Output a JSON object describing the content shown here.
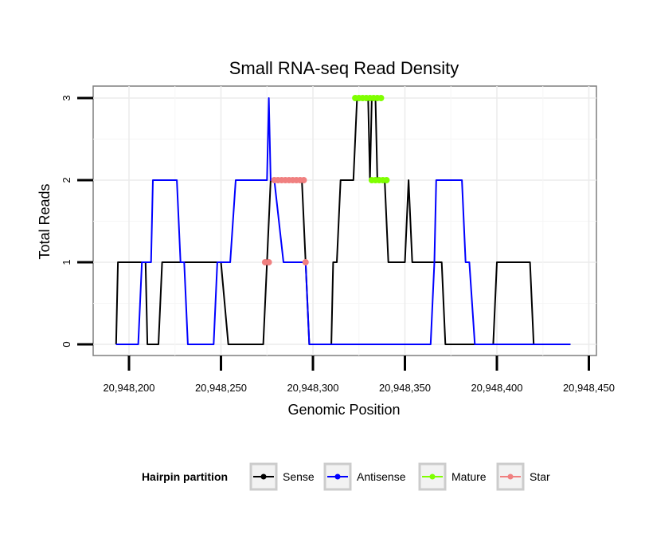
{
  "chart_data": {
    "type": "line",
    "title": "Small RNA-seq Read Density",
    "xlabel": "Genomic Position",
    "ylabel": "Total Reads",
    "xlim": [
      20948190,
      20948450
    ],
    "ylim": [
      0,
      3
    ],
    "x_ticks": [
      20948200,
      20948250,
      20948300,
      20948350,
      20948400,
      20948450
    ],
    "x_tick_labels": [
      "20,948,200",
      "20,948,250",
      "20,948,300",
      "20,948,350",
      "20,948,400",
      "20,948,450"
    ],
    "y_ticks": [
      0,
      1,
      2,
      3
    ],
    "y_tick_labels": [
      "0",
      "1",
      "2",
      "3"
    ],
    "grid": true,
    "legend": {
      "title": "Hairpin partition",
      "position": "bottom",
      "entries": [
        "Sense",
        "Antisense",
        "Mature",
        "Star"
      ]
    },
    "series": [
      {
        "name": "Sense",
        "color": "#000000",
        "style": "line",
        "x": [
          20948193,
          20948194,
          20948207,
          20948209,
          20948210,
          20948216,
          20948218,
          20948220,
          20948228,
          20948250,
          20948254,
          20948255,
          20948273,
          20948275,
          20948277,
          20948279,
          20948294,
          20948296,
          20948298,
          20948310,
          20948311,
          20948313,
          20948315,
          20948322,
          20948324,
          20948325,
          20948328,
          20948330,
          20948331,
          20948332,
          20948334,
          20948335,
          20948339,
          20948341,
          20948343,
          20948350,
          20948352,
          20948354,
          20948356,
          20948364,
          20948366,
          20948370,
          20948372,
          20948398,
          20948400,
          20948418,
          20948420,
          20948440
        ],
        "y": [
          0,
          1,
          1,
          1,
          0,
          0,
          1,
          1,
          1,
          1,
          0,
          0,
          0,
          1,
          2,
          2,
          2,
          1,
          0,
          0,
          1,
          1,
          2,
          2,
          3,
          3,
          3,
          3,
          2,
          3,
          3,
          2,
          2,
          1,
          1,
          1,
          2,
          1,
          1,
          1,
          1,
          1,
          0,
          0,
          1,
          1,
          0,
          0
        ]
      },
      {
        "name": "Antisense",
        "color": "#0000ff",
        "style": "line",
        "x": [
          20948193,
          20948205,
          20948207,
          20948212,
          20948213,
          20948226,
          20948228,
          20948230,
          20948232,
          20948233,
          20948236,
          20948244,
          20948246,
          20948248,
          20948255,
          20948258,
          20948259,
          20948260,
          20948272,
          20948275,
          20948276,
          20948277,
          20948279,
          20948284,
          20948296,
          20948298,
          20948316,
          20948364,
          20948366,
          20948367,
          20948381,
          20948383,
          20948385,
          20948388,
          20948390,
          20948440
        ],
        "y": [
          0,
          0,
          1,
          1,
          2,
          2,
          1,
          1,
          0,
          0,
          0,
          0,
          0,
          1,
          1,
          2,
          2,
          2,
          2,
          2,
          3,
          2,
          2,
          1,
          1,
          0,
          0,
          0,
          1,
          2,
          2,
          1,
          1,
          0,
          0,
          0
        ]
      },
      {
        "name": "Mature",
        "color": "#7fff00",
        "style": "points",
        "x": [
          20948323,
          20948325,
          20948327,
          20948329,
          20948331,
          20948333,
          20948335,
          20948337,
          20948332,
          20948334,
          20948336,
          20948338,
          20948340
        ],
        "y": [
          3,
          3,
          3,
          3,
          3,
          3,
          3,
          3,
          2,
          2,
          2,
          2,
          2
        ]
      },
      {
        "name": "Star",
        "color": "#f08080",
        "style": "points",
        "x": [
          20948274,
          20948276,
          20948279,
          20948281,
          20948283,
          20948285,
          20948287,
          20948289,
          20948291,
          20948293,
          20948295,
          20948296
        ],
        "y": [
          1,
          1,
          2,
          2,
          2,
          2,
          2,
          2,
          2,
          2,
          2,
          1
        ]
      }
    ]
  }
}
